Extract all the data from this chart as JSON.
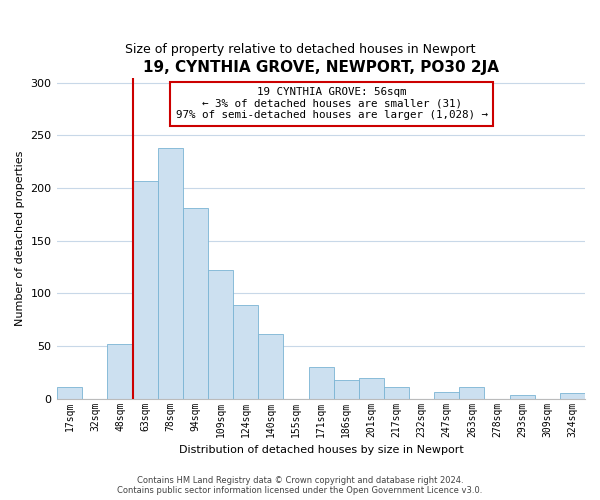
{
  "title": "19, CYNTHIA GROVE, NEWPORT, PO30 2JA",
  "subtitle": "Size of property relative to detached houses in Newport",
  "xlabel": "Distribution of detached houses by size in Newport",
  "ylabel": "Number of detached properties",
  "categories": [
    "17sqm",
    "32sqm",
    "48sqm",
    "63sqm",
    "78sqm",
    "94sqm",
    "109sqm",
    "124sqm",
    "140sqm",
    "155sqm",
    "171sqm",
    "186sqm",
    "201sqm",
    "217sqm",
    "232sqm",
    "247sqm",
    "263sqm",
    "278sqm",
    "293sqm",
    "309sqm",
    "324sqm"
  ],
  "values": [
    11,
    0,
    52,
    207,
    238,
    181,
    122,
    89,
    61,
    0,
    30,
    18,
    20,
    11,
    0,
    6,
    11,
    0,
    3,
    0,
    5
  ],
  "bar_color": "#cce0f0",
  "bar_edge_color": "#7ab4d4",
  "vline_color": "#cc0000",
  "annotation_line1": "19 CYNTHIA GROVE: 56sqm",
  "annotation_line2": "← 3% of detached houses are smaller (31)",
  "annotation_line3": "97% of semi-detached houses are larger (1,028) →",
  "annotation_box_color": "#ffffff",
  "annotation_box_edge_color": "#cc0000",
  "ylim": [
    0,
    305
  ],
  "yticks": [
    0,
    50,
    100,
    150,
    200,
    250,
    300
  ],
  "footer_line1": "Contains HM Land Registry data © Crown copyright and database right 2024.",
  "footer_line2": "Contains public sector information licensed under the Open Government Licence v3.0.",
  "background_color": "#ffffff",
  "grid_color": "#c8d8e8",
  "vline_x_index": 2.5
}
